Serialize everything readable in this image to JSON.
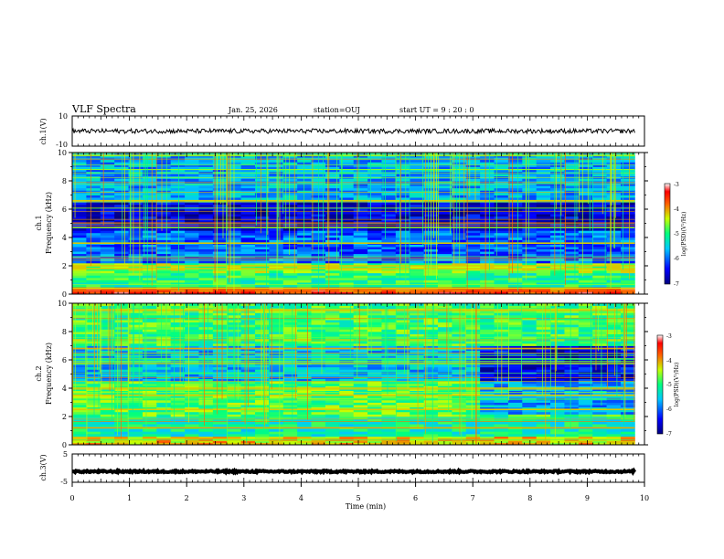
{
  "header": {
    "title": "VLF Spectra",
    "date": "Jan. 25, 2026",
    "station": "station=OUJ",
    "start": "start  UT =   9 : 20 : 0"
  },
  "chart_data": {
    "type": "heatmap",
    "xlabel": "Time  (min)",
    "xlim": [
      0,
      10
    ],
    "xticks": [
      "0",
      "1",
      "2",
      "3",
      "4",
      "5",
      "6",
      "7",
      "8",
      "9",
      "10"
    ],
    "data_end_min": 9.83,
    "panels": [
      {
        "id": "ch1-waveform",
        "type": "line",
        "ylabel": "ch.1(V)",
        "ylim": [
          -10,
          10
        ],
        "yticks": [
          "10",
          "-10"
        ],
        "mean_level": 0,
        "amplitude": 1.5
      },
      {
        "id": "ch1-spectrogram",
        "type": "heatmap",
        "ylabel_line1": "ch.1",
        "ylabel_line2": "Frequency  (kHz)",
        "ylim": [
          0,
          10
        ],
        "yticks": [
          "0",
          "2",
          "4",
          "6",
          "8",
          "10"
        ],
        "colorbar": {
          "label": "log(PSD)(V²/Hz)",
          "range": [
            -7,
            -3
          ],
          "ticks": [
            "-3",
            "-4",
            "-5",
            "-6",
            "-7"
          ]
        },
        "color_levels_by_freq": [
          {
            "f": [
              0,
              0.5
            ],
            "level": -3.6
          },
          {
            "f": [
              0.5,
              1.5
            ],
            "level": -5.0
          },
          {
            "f": [
              1.5,
              2.2
            ],
            "level": -4.6
          },
          {
            "f": [
              2.2,
              4.5
            ],
            "level": -6.0
          },
          {
            "f": [
              4.5,
              6.5
            ],
            "level": -6.6
          },
          {
            "f": [
              6.5,
              10
            ],
            "level": -5.7
          }
        ],
        "strong_lines_khz": [
          0.4,
          1.8,
          2.0,
          3.6,
          4.7,
          6.6
        ]
      },
      {
        "id": "ch2-spectrogram",
        "type": "heatmap",
        "ylabel_line1": "ch.2",
        "ylabel_line2": "Frequency  (kHz)",
        "ylim": [
          0,
          10
        ],
        "yticks": [
          "0",
          "2",
          "4",
          "6",
          "8",
          "10"
        ],
        "colorbar": {
          "label": "log(PSD)(V²/Hz)",
          "range": [
            -7,
            -3
          ],
          "ticks": [
            "-3",
            "-4",
            "-5",
            "-6",
            "-7"
          ]
        },
        "color_levels_by_freq": [
          {
            "f": [
              0,
              0.6
            ],
            "level": -4.2
          },
          {
            "f": [
              0.6,
              2.0
            ],
            "level": -5.2
          },
          {
            "f": [
              2.0,
              4.5
            ],
            "level": -4.8
          },
          {
            "f": [
              4.5,
              7.0
            ],
            "level": -5.6
          },
          {
            "f": [
              7.0,
              10
            ],
            "level": -4.9
          }
        ],
        "change_time_min": 7.05,
        "strong_lines_khz": [
          1.2,
          2.5,
          3.5,
          4.0,
          6.8,
          9.5
        ]
      },
      {
        "id": "ch3-waveform",
        "type": "line",
        "ylabel": "ch.3(V)",
        "ylim": [
          -5,
          5
        ],
        "yticks": [
          "5",
          "-5"
        ],
        "mean_level": -1.2,
        "amplitude": 0.3
      }
    ]
  },
  "colors": {
    "axis": "#000000",
    "background": "#ffffff",
    "trace": "#000000"
  }
}
